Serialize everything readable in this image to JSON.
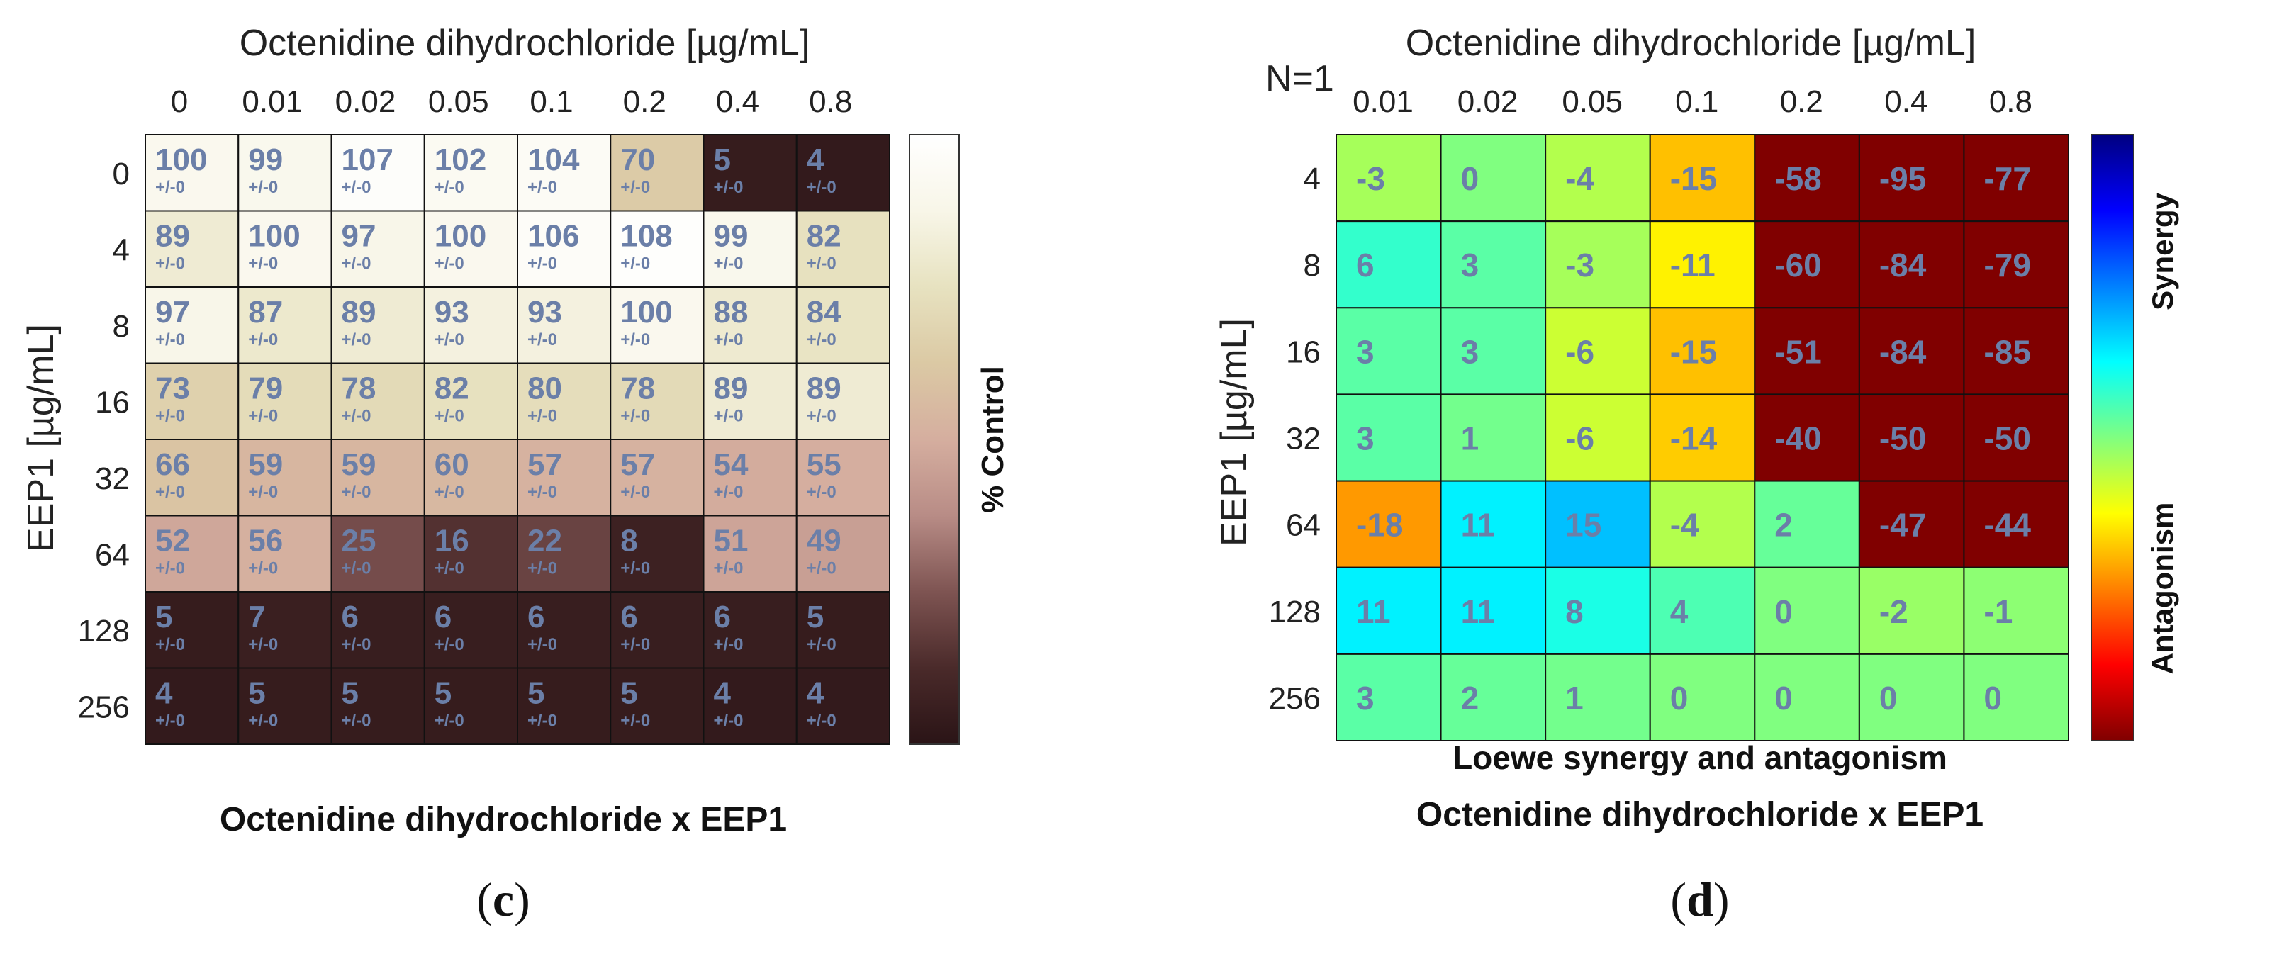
{
  "chart_data": [
    {
      "type": "heatmap",
      "panel": "(c)",
      "panel_letter": "c",
      "title_top": "Octenidine dihydrochloride [µg/mL]",
      "ylabel": "EEP1 [µg/mL]",
      "xlabel_bottom": "Octenidine dihydrochloride x EEP1",
      "colorbar_label": "% Control",
      "x_categories": [
        "0",
        "0.01",
        "0.02",
        "0.05",
        "0.1",
        "0.2",
        "0.4",
        "0.8"
      ],
      "y_categories": [
        "0",
        "4",
        "8",
        "16",
        "32",
        "64",
        "128",
        "256"
      ],
      "values": [
        [
          100,
          99,
          107,
          102,
          104,
          70,
          5,
          4
        ],
        [
          89,
          100,
          97,
          100,
          106,
          108,
          99,
          82
        ],
        [
          97,
          87,
          89,
          93,
          93,
          100,
          88,
          84
        ],
        [
          73,
          79,
          78,
          82,
          80,
          78,
          89,
          89
        ],
        [
          66,
          59,
          59,
          60,
          57,
          57,
          54,
          55
        ],
        [
          52,
          56,
          25,
          16,
          22,
          8,
          51,
          49
        ],
        [
          5,
          7,
          6,
          6,
          6,
          6,
          6,
          5
        ],
        [
          4,
          5,
          5,
          5,
          5,
          5,
          4,
          4
        ]
      ],
      "sd_label": "+/-0",
      "colorscale": [
        "#2a1416",
        "#4a2a2a",
        "#7e5452",
        "#b88c86",
        "#d5ae9f",
        "#dbc9a4",
        "#e7e2c0",
        "#f8f6e8",
        "#ffffff"
      ],
      "value_range": [
        0,
        110
      ]
    },
    {
      "type": "heatmap",
      "panel": "(d)",
      "panel_letter": "d",
      "n_label": "N=1",
      "title_top": "Octenidine dihydrochloride [µg/mL]",
      "ylabel": "EEP1 [µg/mL]",
      "title_bottom": [
        "Loewe synergy and antagonism",
        "Octenidine dihydrochloride x EEP1"
      ],
      "colorbar_labels": [
        "Synergy",
        "Antagonism"
      ],
      "x_categories": [
        "0.01",
        "0.02",
        "0.05",
        "0.1",
        "0.2",
        "0.4",
        "0.8"
      ],
      "y_categories": [
        "4",
        "8",
        "16",
        "32",
        "64",
        "128",
        "256"
      ],
      "values": [
        [
          -3,
          0,
          -4,
          -15,
          -58,
          -95,
          -77
        ],
        [
          6,
          3,
          -3,
          -11,
          -60,
          -84,
          -79
        ],
        [
          3,
          3,
          -6,
          -15,
          -51,
          -84,
          -85
        ],
        [
          3,
          1,
          -6,
          -14,
          -40,
          -50,
          -50
        ],
        [
          -18,
          11,
          15,
          -4,
          2,
          -47,
          -44
        ],
        [
          11,
          11,
          8,
          4,
          0,
          -2,
          -1
        ],
        [
          3,
          2,
          1,
          0,
          0,
          0,
          0
        ]
      ],
      "colorscale": [
        "#800000",
        "#ff0000",
        "#ff8000",
        "#ffff00",
        "#80ff80",
        "#00ffff",
        "#0080ff",
        "#0000ff",
        "#000080"
      ],
      "value_range": [
        -40,
        40
      ]
    }
  ]
}
